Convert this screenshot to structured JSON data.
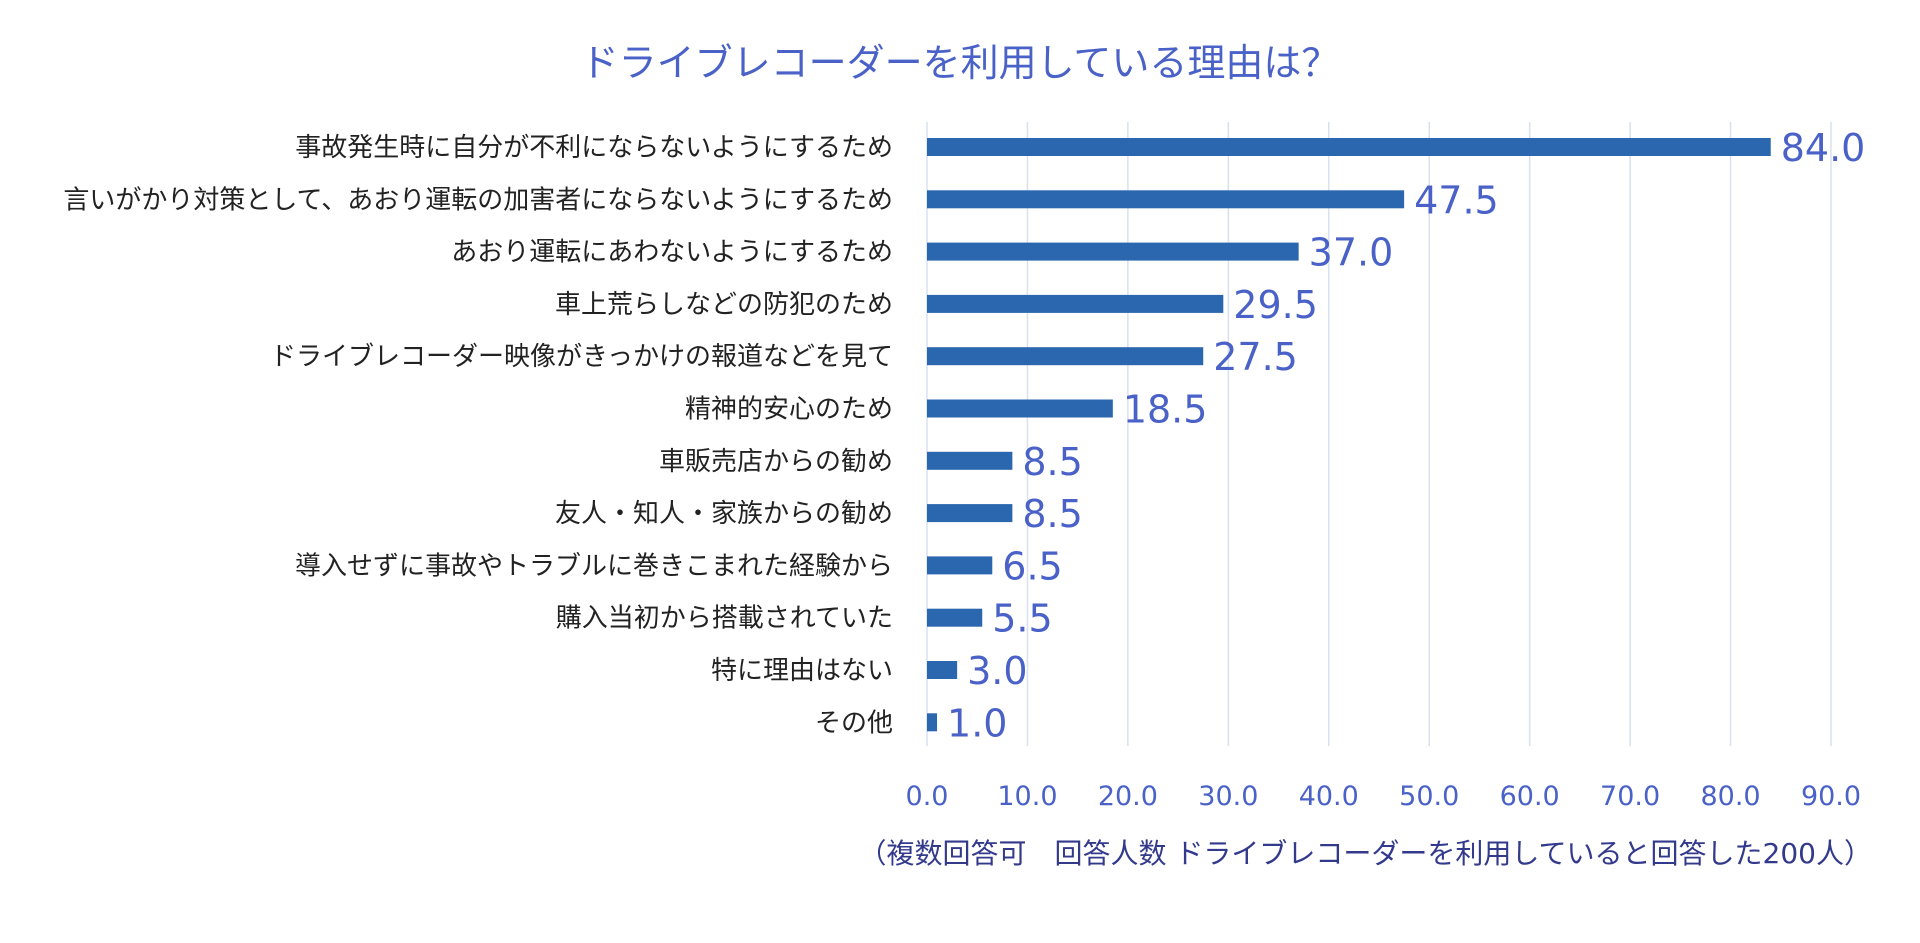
{
  "chart_data": {
    "type": "bar",
    "orientation": "horizontal",
    "title": "ドライブレコーダーを利用している理由は？",
    "categories": [
      "事故発生時に自分が不利にならないようにするため",
      "言いがかり対策として、あおり運転の加害者にならないようにするため",
      "あおり運転にあわないようにするため",
      "車上荒らしなどの防犯のため",
      "ドライブレコーダー映像がきっかけの報道などを見て",
      "精神的安心のため",
      "車販売店からの勧め",
      "友人・知人・家族からの勧め",
      "導入せずに事故やトラブルに巻きこまれた経験から",
      "購入当初から搭載されていた",
      "特に理由はない",
      "その他"
    ],
    "values": [
      84.0,
      47.5,
      37.0,
      29.5,
      27.5,
      18.5,
      8.5,
      8.5,
      6.5,
      5.5,
      3.0,
      1.0
    ],
    "xlim": [
      0,
      90
    ],
    "xticks": [
      "0.0",
      "10.0",
      "20.0",
      "30.0",
      "40.0",
      "50.0",
      "60.0",
      "70.0",
      "80.0",
      "90.0"
    ],
    "grid": true,
    "data_labels": true,
    "footnote": "（複数回答可　回答人数 ドライブレコーダーを利用していると回答した200人）",
    "colors": {
      "bar": "#2b67ae",
      "value_text": "#4a62c8",
      "grid": "#d9e1f0"
    }
  }
}
